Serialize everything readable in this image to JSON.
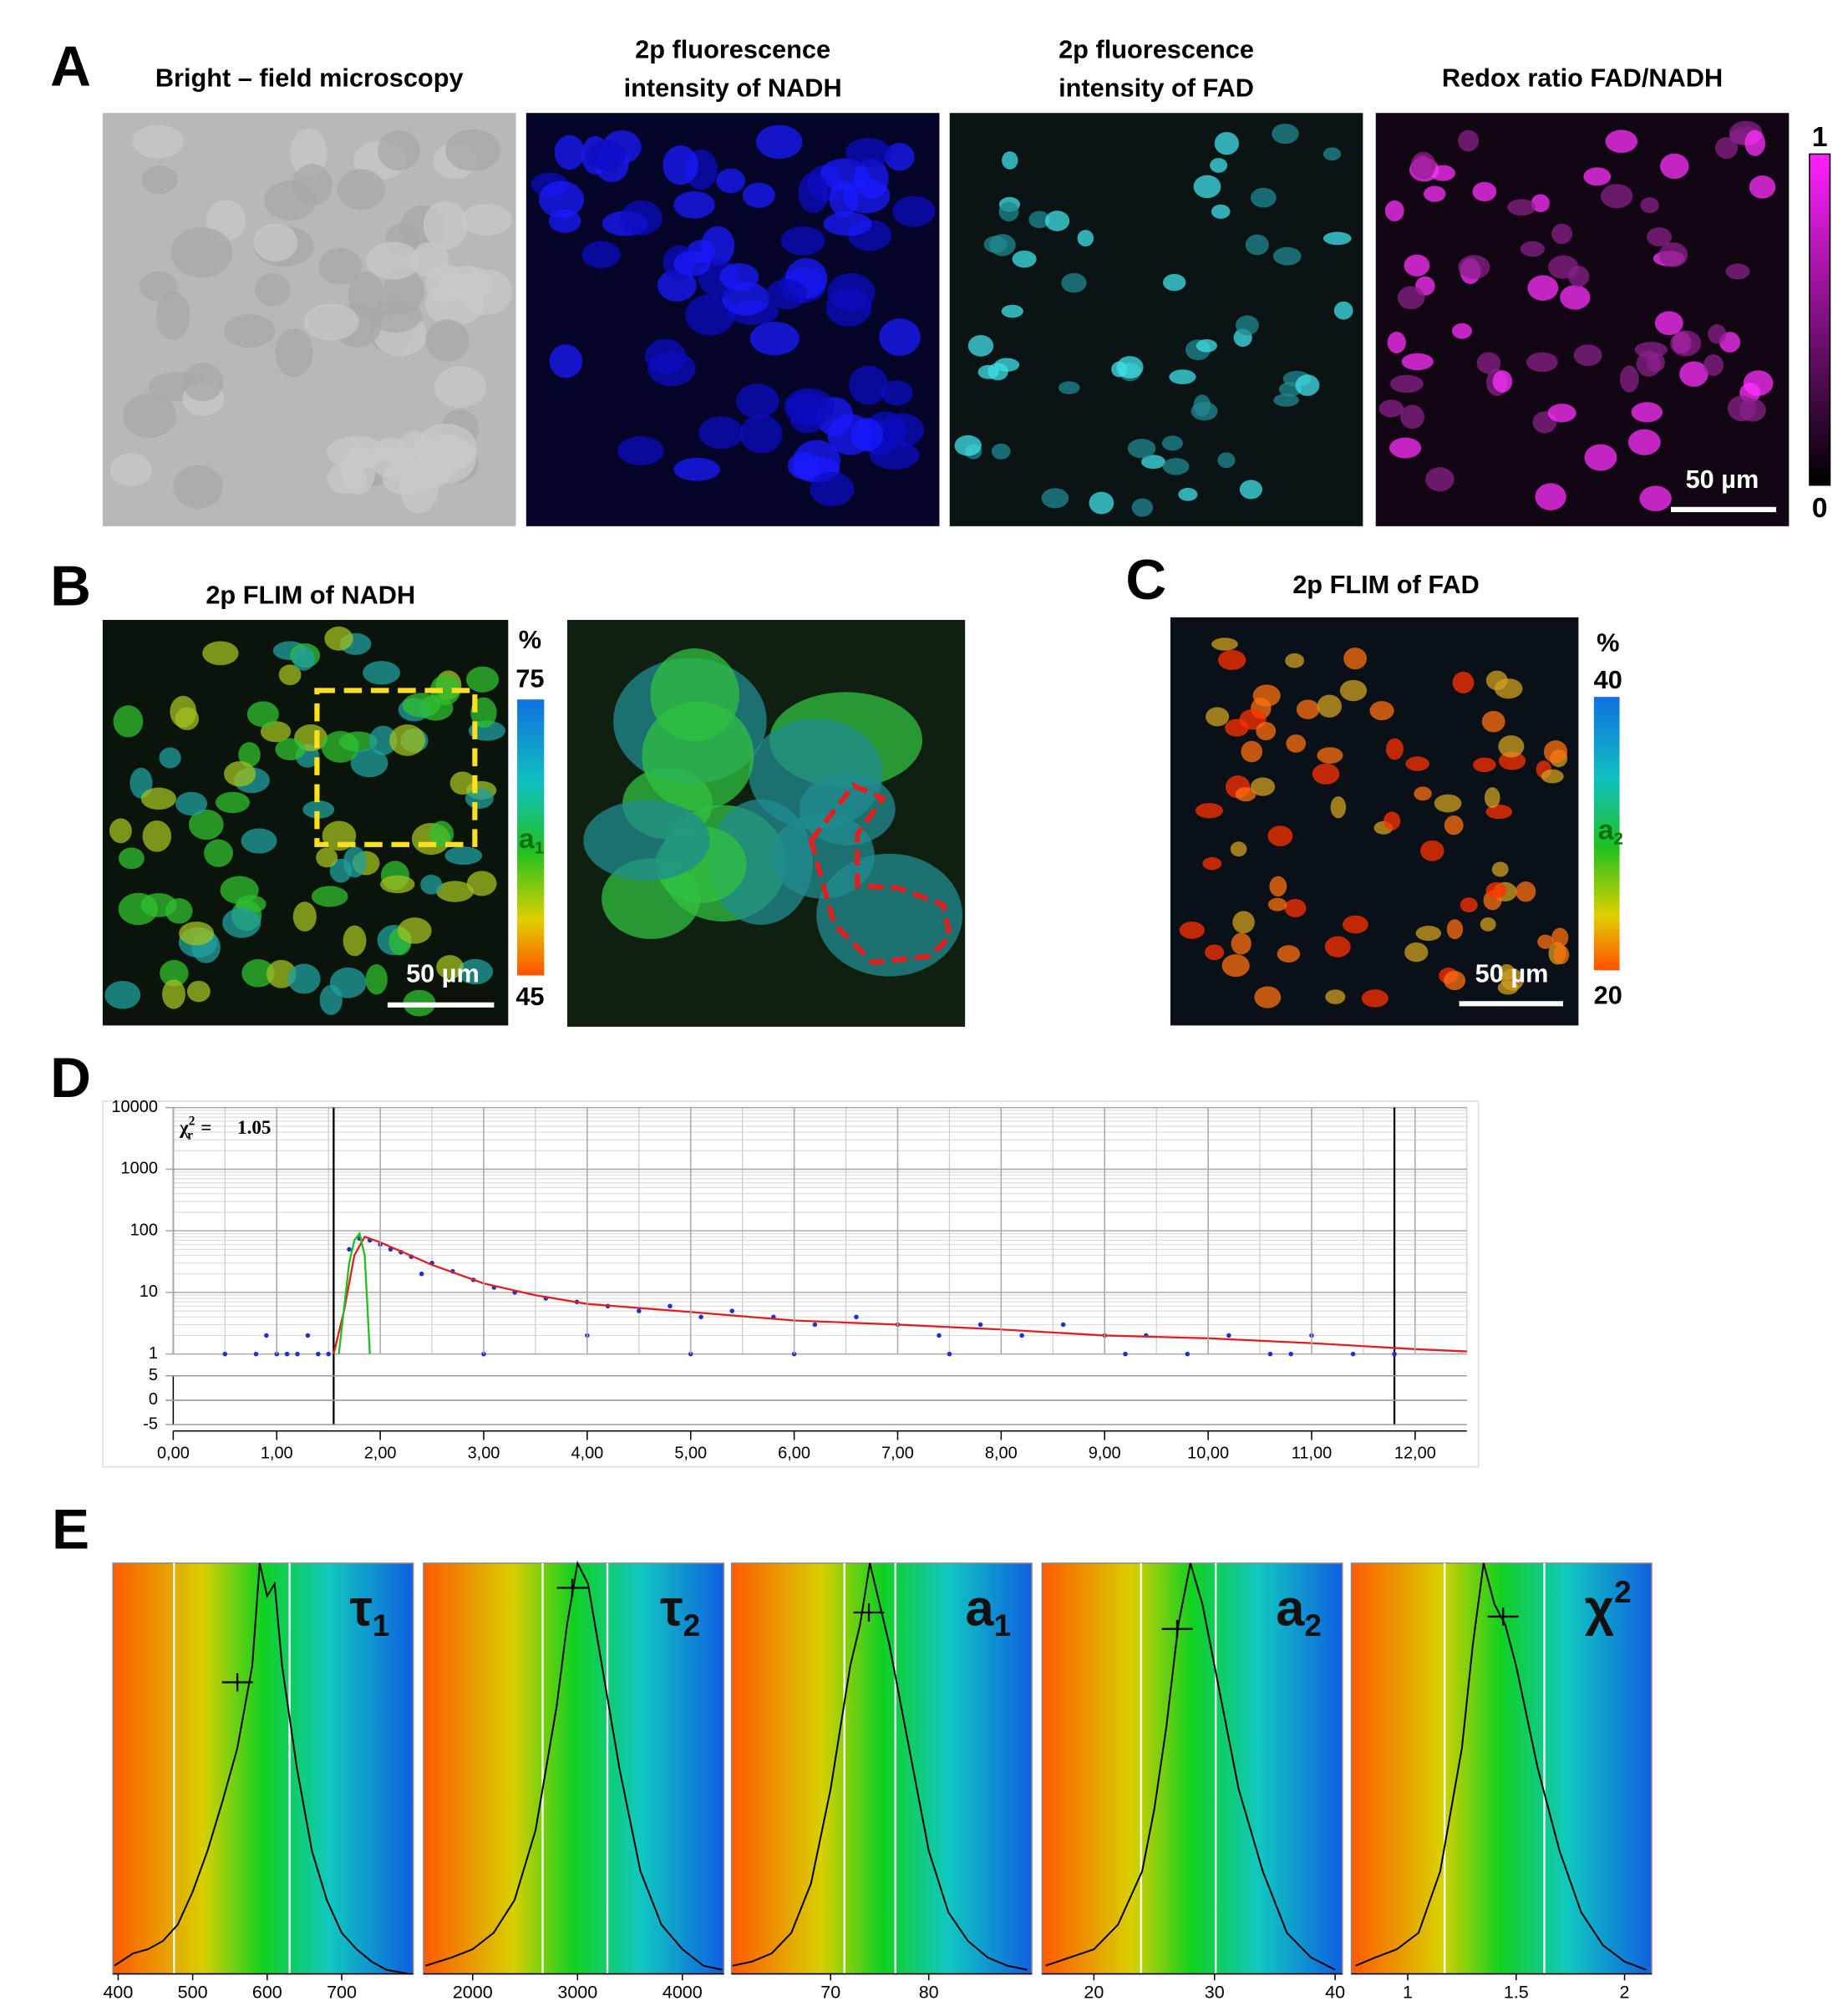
{
  "panels": {
    "A": {
      "letter": "A",
      "images": [
        {
          "title": [
            "Bright – field microscopy"
          ]
        },
        {
          "title": [
            "2p fluorescence",
            "intensity of NADH"
          ]
        },
        {
          "title": [
            "2p fluorescence",
            "intensity of FAD"
          ]
        },
        {
          "title": [
            "Redox ratio FAD/NADH"
          ]
        }
      ],
      "colorbar": {
        "top": 1,
        "bottom": 0
      },
      "scale_bar": "50 µm"
    },
    "B": {
      "letter": "B",
      "title": "2p FLIM of NADH",
      "colorbar": {
        "unit": "%",
        "top": 75,
        "label": {
          "symbol": "a",
          "sub": "1"
        },
        "bottom": 45
      },
      "scale_bar": "50 µm"
    },
    "C": {
      "letter": "C",
      "title": "2p FLIM of FAD",
      "colorbar": {
        "unit": "%",
        "top": 40,
        "label": {
          "symbol": "a",
          "sub": "2"
        },
        "bottom": 20
      },
      "scale_bar": "50 µm"
    },
    "D": {
      "letter": "D"
    },
    "E": {
      "letter": "E"
    }
  },
  "chart_data": [
    {
      "type": "scatter",
      "yscale": "log",
      "grid": true,
      "chi_label": {
        "symbol": "χ",
        "sup": "2",
        "sub": "r",
        "eq": "=",
        "value": 1.05
      },
      "xlim": [
        0,
        12.5
      ],
      "ylim": [
        1,
        10000
      ],
      "yticks": [
        10000,
        1000,
        100,
        10,
        1
      ],
      "xticks": [
        {
          "value": 0,
          "label": "0,00"
        },
        {
          "value": 1,
          "label": "1,00"
        },
        {
          "value": 2,
          "label": "2,00"
        },
        {
          "value": 3,
          "label": "3,00"
        },
        {
          "value": 4,
          "label": "4,00"
        },
        {
          "value": 5,
          "label": "5,00"
        },
        {
          "value": 6,
          "label": "6,00"
        },
        {
          "value": 7,
          "label": "7,00"
        },
        {
          "value": 8,
          "label": "8,00"
        },
        {
          "value": 9,
          "label": "9,00"
        },
        {
          "value": 10,
          "label": "10,00"
        },
        {
          "value": 11,
          "label": "11,00"
        },
        {
          "value": 12,
          "label": "12,00"
        }
      ],
      "residual_ylim": [
        -5,
        5
      ],
      "residual_yticks": [
        5,
        0,
        -5
      ],
      "cursors": [
        1.55,
        11.8
      ],
      "series": [
        {
          "style": "points",
          "color": "#1f2fd0",
          "x": [
            0.5,
            0.8,
            0.9,
            1.0,
            1.1,
            1.2,
            1.3,
            1.4,
            1.5,
            1.7,
            1.8,
            1.9,
            2.0,
            2.1,
            2.2,
            2.3,
            2.5,
            2.7,
            2.9,
            3.1,
            3.3,
            3.6,
            3.9,
            4.2,
            4.5,
            4.8,
            5.1,
            5.4,
            5.8,
            6.2,
            6.6,
            7.0,
            7.4,
            7.8,
            8.2,
            8.6,
            9.0,
            9.4,
            9.8,
            10.2,
            10.6,
            11.0,
            11.4,
            11.8,
            2.4,
            3.0,
            4.0,
            5.0,
            6.0,
            7.5,
            9.2,
            10.8
          ],
          "values": [
            1,
            1,
            2,
            1,
            1,
            1,
            2,
            1,
            1,
            50,
            75,
            70,
            60,
            50,
            45,
            38,
            30,
            22,
            16,
            12,
            10,
            8,
            7,
            6,
            5,
            6,
            4,
            5,
            4,
            3,
            4,
            3,
            2,
            3,
            2,
            3,
            2,
            2,
            1,
            2,
            1,
            2,
            1,
            1,
            20,
            1,
            2,
            1,
            1,
            1,
            1,
            1
          ]
        },
        {
          "style": "line",
          "color": "#e02020",
          "x": [
            1.55,
            1.65,
            1.75,
            1.85,
            2.0,
            2.5,
            3.0,
            3.5,
            4.0,
            5.0,
            6.0,
            7.0,
            8.0,
            9.0,
            10.0,
            11.0,
            12.0,
            12.5
          ],
          "values": [
            1,
            5,
            40,
            80,
            65,
            28,
            14,
            9,
            6.5,
            4.8,
            3.5,
            3,
            2.5,
            2,
            1.8,
            1.5,
            1.2,
            1.1
          ]
        },
        {
          "style": "line",
          "color": "#20c020",
          "x": [
            1.6,
            1.7,
            1.75,
            1.8,
            1.85,
            1.9
          ],
          "values": [
            1,
            30,
            70,
            90,
            40,
            1
          ]
        }
      ]
    },
    {
      "type": "line",
      "label": {
        "symbol": "τ",
        "sub": "1"
      },
      "xlim": [
        393,
        796
      ],
      "ylim": [
        0,
        100
      ],
      "xticks": [
        400,
        500,
        600,
        700
      ],
      "markers": [
        475,
        630
      ],
      "cross": {
        "x": 560,
        "y": 71
      },
      "x": [
        395,
        420,
        440,
        460,
        480,
        500,
        520,
        540,
        560,
        580,
        590,
        600,
        610,
        620,
        640,
        660,
        680,
        700,
        720,
        740,
        760,
        790
      ],
      "values": [
        2,
        5,
        6,
        8,
        12,
        20,
        30,
        42,
        55,
        75,
        100,
        92,
        95,
        75,
        50,
        30,
        18,
        10,
        6,
        3,
        1,
        0
      ]
    },
    {
      "type": "line",
      "label": {
        "symbol": "τ",
        "sub": "2"
      },
      "xlim": [
        1531,
        4395
      ],
      "ylim": [
        0,
        100
      ],
      "xticks": [
        2000,
        3000,
        4000
      ],
      "markers": [
        2667,
        3285
      ],
      "cross": {
        "x": 2950,
        "y": 94
      },
      "x": [
        1550,
        1800,
        2000,
        2200,
        2400,
        2600,
        2800,
        2900,
        3000,
        3100,
        3200,
        3400,
        3600,
        3800,
        4000,
        4200,
        4380
      ],
      "values": [
        2,
        4,
        6,
        10,
        18,
        35,
        65,
        85,
        100,
        95,
        80,
        50,
        25,
        12,
        6,
        2,
        1
      ]
    },
    {
      "type": "line",
      "label": {
        "symbol": "a",
        "sub": "1"
      },
      "xlim": [
        59.9,
        90.5
      ],
      "ylim": [
        0,
        100
      ],
      "xticks": [
        70,
        80
      ],
      "markers": [
        71.4,
        76.6
      ],
      "cross": {
        "x": 73.9,
        "y": 88
      },
      "x": [
        60,
        62,
        64,
        66,
        68,
        70,
        72,
        73,
        74,
        75,
        76,
        78,
        80,
        82,
        84,
        86,
        88,
        90
      ],
      "values": [
        2,
        3,
        5,
        10,
        22,
        45,
        75,
        85,
        100,
        90,
        80,
        55,
        30,
        15,
        8,
        4,
        2,
        1
      ]
    },
    {
      "type": "line",
      "label": {
        "symbol": "a",
        "sub": "2"
      },
      "xlim": [
        15.7,
        40.6
      ],
      "ylim": [
        0,
        100
      ],
      "xticks": [
        20,
        30,
        40
      ],
      "markers": [
        23.9,
        30.1
      ],
      "cross": {
        "x": 26.9,
        "y": 84
      },
      "x": [
        16,
        18,
        20,
        22,
        24,
        25,
        26,
        27,
        28,
        29,
        30,
        32,
        34,
        36,
        38,
        40
      ],
      "values": [
        2,
        4,
        6,
        12,
        25,
        40,
        60,
        85,
        100,
        90,
        75,
        45,
        25,
        10,
        4,
        1
      ]
    },
    {
      "type": "line",
      "label": {
        "symbol": "χ",
        "sup": "2"
      },
      "xlim": [
        0.74,
        2.125
      ],
      "ylim": [
        0,
        100
      ],
      "xticks": [
        1,
        1.5,
        2
      ],
      "markers": [
        1.17,
        1.63
      ],
      "cross": {
        "x": 1.44,
        "y": 87
      },
      "x": [
        0.76,
        0.85,
        0.95,
        1.05,
        1.15,
        1.25,
        1.3,
        1.35,
        1.4,
        1.45,
        1.5,
        1.6,
        1.7,
        1.8,
        1.9,
        2.0,
        2.1
      ],
      "values": [
        2,
        4,
        6,
        10,
        25,
        55,
        80,
        100,
        90,
        85,
        75,
        50,
        30,
        15,
        7,
        3,
        1
      ]
    }
  ]
}
